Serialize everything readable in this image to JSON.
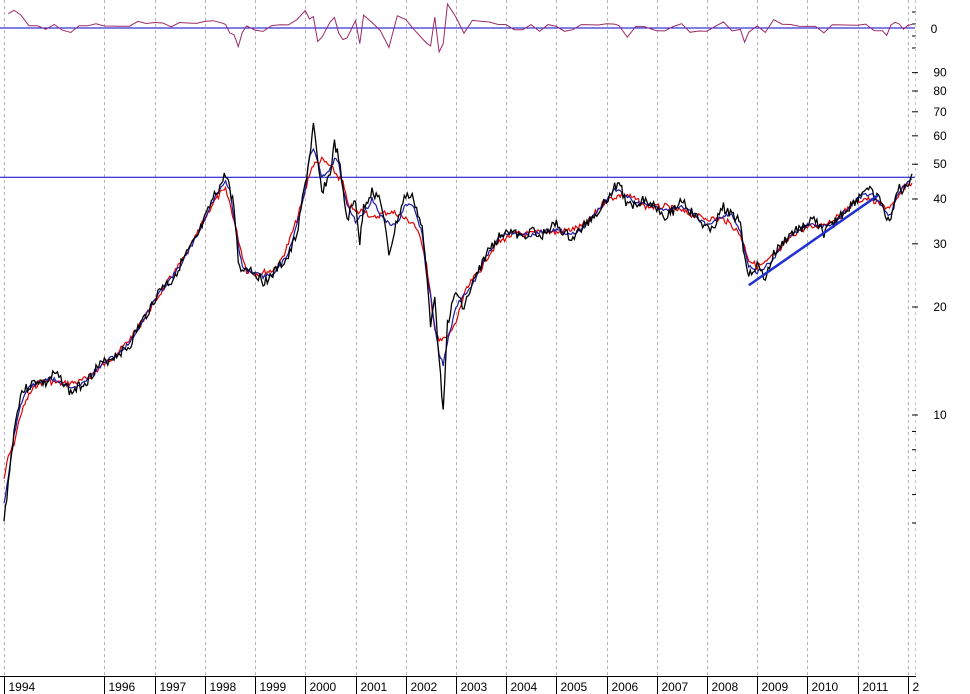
{
  "chart_data": {
    "type": "line",
    "title": "",
    "xlabel": "",
    "ylabel": "",
    "y_scale": "log",
    "ylim": [
      5,
      80
    ],
    "xlim": [
      "1994-01-01",
      "2012-02-01"
    ],
    "grid": {
      "x": true,
      "y": false
    },
    "x_tick_labels": [
      "1994",
      "1996",
      "1997",
      "1998",
      "1999",
      "2000",
      "2001",
      "2002",
      "2003",
      "2004",
      "2005",
      "2006",
      "2007",
      "2008",
      "2009",
      "2010",
      "2011",
      "2"
    ],
    "x_tick_dates": [
      "1994-01-01",
      "1996-01-01",
      "1997-01-01",
      "1998-01-01",
      "1999-01-01",
      "2000-01-01",
      "2001-01-01",
      "2002-01-01",
      "2003-01-01",
      "2004-01-01",
      "2005-01-01",
      "2006-01-01",
      "2007-01-01",
      "2008-01-01",
      "2009-01-01",
      "2010-01-01",
      "2011-01-01",
      "2012-01-01"
    ],
    "y_tick_labels": [
      {
        "value": 10,
        "label": "10"
      },
      {
        "value": 20,
        "label": "20"
      },
      {
        "value": 30,
        "label": "30"
      },
      {
        "value": 40,
        "label": "40"
      },
      {
        "value": 50,
        "label": "50"
      },
      {
        "value": 60,
        "label": "60"
      },
      {
        "value": 70,
        "label": "70"
      },
      {
        "value": 80,
        "label": "80"
      },
      {
        "value": 90,
        "label": "90"
      }
    ],
    "reference_line": {
      "value": 46,
      "color": "#0000cc"
    },
    "trendline": {
      "from": [
        "2008-11-01",
        23
      ],
      "to": [
        "2011-06-01",
        41
      ],
      "color": "#1f2fd0"
    },
    "series": [
      {
        "color": "#000000",
        "points": [
          [
            "1994-01-01",
            5.0
          ],
          [
            "1994-02-01",
            6.5
          ],
          [
            "1994-03-15",
            9.0
          ],
          [
            "1994-05-01",
            11.5
          ],
          [
            "1994-07-01",
            12.0
          ],
          [
            "1994-09-01",
            12.5
          ],
          [
            "1994-11-01",
            12.2
          ],
          [
            "1995-01-01",
            13.0
          ],
          [
            "1995-03-01",
            12.5
          ],
          [
            "1995-05-01",
            11.5
          ],
          [
            "1995-07-01",
            12.0
          ],
          [
            "1995-09-01",
            12.5
          ],
          [
            "1995-11-01",
            13.5
          ],
          [
            "1996-01-01",
            14.0
          ],
          [
            "1996-03-01",
            14.5
          ],
          [
            "1996-05-01",
            15.0
          ],
          [
            "1996-07-01",
            15.5
          ],
          [
            "1996-09-01",
            17.5
          ],
          [
            "1996-11-01",
            19.0
          ],
          [
            "1997-01-01",
            21.0
          ],
          [
            "1997-03-01",
            23.0
          ],
          [
            "1997-05-01",
            23.5
          ],
          [
            "1997-07-01",
            26.0
          ],
          [
            "1997-09-01",
            28.5
          ],
          [
            "1997-11-01",
            31.0
          ],
          [
            "1998-01-01",
            35.0
          ],
          [
            "1998-03-01",
            40.0
          ],
          [
            "1998-05-01",
            44.0
          ],
          [
            "1998-06-01",
            47.0
          ],
          [
            "1998-07-01",
            43.0
          ],
          [
            "1998-08-01",
            38.0
          ],
          [
            "1998-09-01",
            27.0
          ],
          [
            "1998-10-01",
            25.0
          ],
          [
            "1998-11-01",
            26.0
          ],
          [
            "1999-01-01",
            25.0
          ],
          [
            "1999-03-01",
            23.5
          ],
          [
            "1999-05-01",
            24.5
          ],
          [
            "1999-07-01",
            26.0
          ],
          [
            "1999-09-01",
            27.5
          ],
          [
            "1999-11-01",
            32.0
          ],
          [
            "2000-01-01",
            44.0
          ],
          [
            "2000-02-01",
            52.0
          ],
          [
            "2000-03-01",
            64.0
          ],
          [
            "2000-04-01",
            50.0
          ],
          [
            "2000-05-01",
            42.0
          ],
          [
            "2000-07-01",
            47.0
          ],
          [
            "2000-08-01",
            57.0
          ],
          [
            "2000-09-01",
            52.0
          ],
          [
            "2000-10-01",
            42.0
          ],
          [
            "2000-11-01",
            35.0
          ],
          [
            "2001-01-01",
            40.0
          ],
          [
            "2001-02-01",
            30.0
          ],
          [
            "2001-03-01",
            38.0
          ],
          [
            "2001-05-01",
            42.0
          ],
          [
            "2001-07-01",
            40.0
          ],
          [
            "2001-09-01",
            28.0
          ],
          [
            "2001-11-01",
            35.0
          ],
          [
            "2002-01-01",
            41.0
          ],
          [
            "2002-03-01",
            40.0
          ],
          [
            "2002-05-01",
            33.0
          ],
          [
            "2002-06-01",
            25.0
          ],
          [
            "2002-07-01",
            18.0
          ],
          [
            "2002-08-01",
            22.0
          ],
          [
            "2002-09-01",
            14.0
          ],
          [
            "2002-10-01",
            10.5
          ],
          [
            "2002-11-01",
            18.0
          ],
          [
            "2003-01-01",
            22.0
          ],
          [
            "2003-03-01",
            20.0
          ],
          [
            "2003-05-01",
            23.0
          ],
          [
            "2003-07-01",
            26.0
          ],
          [
            "2003-09-01",
            29.0
          ],
          [
            "2003-11-01",
            31.0
          ],
          [
            "2004-01-01",
            33.0
          ],
          [
            "2004-03-01",
            32.0
          ],
          [
            "2004-05-01",
            31.0
          ],
          [
            "2004-07-01",
            33.0
          ],
          [
            "2004-09-01",
            31.0
          ],
          [
            "2004-11-01",
            33.0
          ],
          [
            "2005-01-01",
            34.0
          ],
          [
            "2005-03-01",
            32.0
          ],
          [
            "2005-05-01",
            31.0
          ],
          [
            "2005-07-01",
            33.0
          ],
          [
            "2005-09-01",
            35.0
          ],
          [
            "2005-11-01",
            37.0
          ],
          [
            "2006-01-01",
            40.0
          ],
          [
            "2006-03-01",
            43.0
          ],
          [
            "2006-04-01",
            45.0
          ],
          [
            "2006-06-01",
            38.0
          ],
          [
            "2006-08-01",
            39.0
          ],
          [
            "2006-10-01",
            40.0
          ],
          [
            "2007-01-01",
            38.0
          ],
          [
            "2007-03-01",
            36.0
          ],
          [
            "2007-05-01",
            37.0
          ],
          [
            "2007-07-01",
            40.0
          ],
          [
            "2007-09-01",
            37.0
          ],
          [
            "2007-11-01",
            35.0
          ],
          [
            "2008-01-01",
            33.0
          ],
          [
            "2008-03-01",
            34.0
          ],
          [
            "2008-05-01",
            38.0
          ],
          [
            "2008-07-01",
            36.0
          ],
          [
            "2008-09-01",
            35.0
          ],
          [
            "2008-10-01",
            27.0
          ],
          [
            "2008-11-01",
            25.0
          ],
          [
            "2009-01-01",
            26.0
          ],
          [
            "2009-03-01",
            24.0
          ],
          [
            "2009-05-01",
            28.0
          ],
          [
            "2009-07-01",
            30.0
          ],
          [
            "2009-09-01",
            32.0
          ],
          [
            "2009-11-01",
            33.0
          ],
          [
            "2010-01-01",
            34.0
          ],
          [
            "2010-03-01",
            35.0
          ],
          [
            "2010-05-01",
            32.0
          ],
          [
            "2010-07-01",
            34.0
          ],
          [
            "2010-09-01",
            36.0
          ],
          [
            "2010-11-01",
            38.0
          ],
          [
            "2011-01-01",
            40.0
          ],
          [
            "2011-03-01",
            43.0
          ],
          [
            "2011-05-01",
            41.0
          ],
          [
            "2011-07-01",
            39.0
          ],
          [
            "2011-08-01",
            34.0
          ],
          [
            "2011-09-01",
            36.0
          ],
          [
            "2011-10-01",
            40.0
          ],
          [
            "2011-11-01",
            43.0
          ],
          [
            "2011-12-01",
            42.0
          ],
          [
            "2012-01-01",
            44.0
          ],
          [
            "2012-02-01",
            47.0
          ]
        ]
      }
    ]
  }
}
